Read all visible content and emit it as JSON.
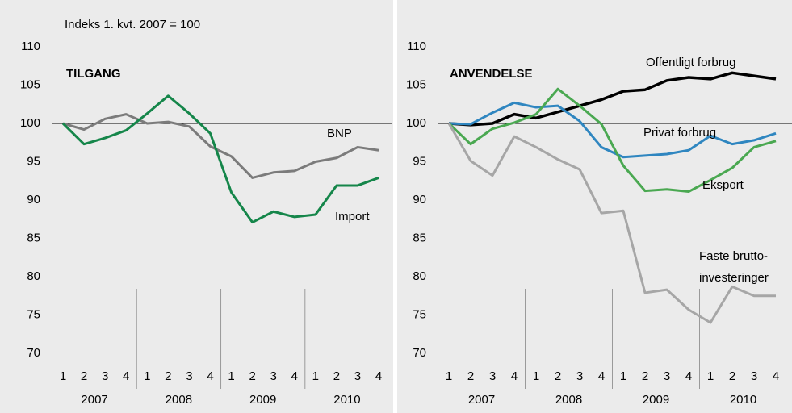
{
  "chart_data": [
    {
      "type": "line",
      "subtitle": "Indeks 1. kvt. 2007 = 100",
      "title": "TILGANG",
      "categories": [
        "1",
        "2",
        "3",
        "4",
        "1",
        "2",
        "3",
        "4",
        "1",
        "2",
        "3",
        "4",
        "1",
        "2",
        "3",
        "4"
      ],
      "years": [
        "2007",
        "2008",
        "2009",
        "2010"
      ],
      "ylim": [
        70,
        110
      ],
      "yticks": [
        70,
        75,
        80,
        85,
        90,
        95,
        100,
        105,
        110
      ],
      "reference_line": 100,
      "series": [
        {
          "name": "BNP",
          "color": "#7b7b7b",
          "values": [
            100,
            99.2,
            100.6,
            101.2,
            100.0,
            100.2,
            99.6,
            97.0,
            95.7,
            92.9,
            93.6,
            93.8,
            95.0,
            95.5,
            96.9,
            96.5
          ]
        },
        {
          "name": "Import",
          "color": "#15864a",
          "values": [
            100,
            97.3,
            98.1,
            99.1,
            101.3,
            103.6,
            101.3,
            98.7,
            91.0,
            87.1,
            88.5,
            87.8,
            88.1,
            91.9,
            91.9,
            92.9
          ]
        }
      ]
    },
    {
      "type": "line",
      "title": "ANVENDELSE",
      "categories": [
        "1",
        "2",
        "3",
        "4",
        "1",
        "2",
        "3",
        "4",
        "1",
        "2",
        "3",
        "4",
        "1",
        "2",
        "3",
        "4"
      ],
      "years": [
        "2007",
        "2008",
        "2009",
        "2010"
      ],
      "ylim": [
        70,
        110
      ],
      "yticks": [
        70,
        75,
        80,
        85,
        90,
        95,
        100,
        105,
        110
      ],
      "reference_line": 100,
      "series": [
        {
          "name": "Offentligt forbrug",
          "color": "#000000",
          "values": [
            100,
            99.8,
            100.0,
            101.2,
            100.7,
            101.5,
            102.3,
            103.1,
            104.2,
            104.4,
            105.6,
            106.0,
            105.8,
            106.6,
            106.2,
            105.8
          ]
        },
        {
          "name": "Privat forbrug",
          "color": "#2f86c0",
          "values": [
            100,
            99.9,
            101.4,
            102.7,
            102.1,
            102.3,
            100.3,
            96.9,
            95.6,
            95.8,
            96.0,
            96.5,
            98.4,
            97.3,
            97.8,
            98.7
          ]
        },
        {
          "name": "Eksport",
          "color": "#4aa851",
          "values": [
            100,
            97.3,
            99.3,
            100.1,
            101.2,
            104.5,
            102.3,
            99.9,
            94.5,
            91.2,
            91.4,
            91.1,
            92.6,
            94.2,
            96.9,
            97.7
          ]
        },
        {
          "name": "Faste brutto-\ninvesteringer",
          "color": "#a6a6a6",
          "values": [
            100,
            95.1,
            93.2,
            98.3,
            96.9,
            95.3,
            94.0,
            88.3,
            88.6,
            77.9,
            78.3,
            75.7,
            74.0,
            78.7,
            77.5,
            77.5
          ]
        }
      ]
    }
  ]
}
